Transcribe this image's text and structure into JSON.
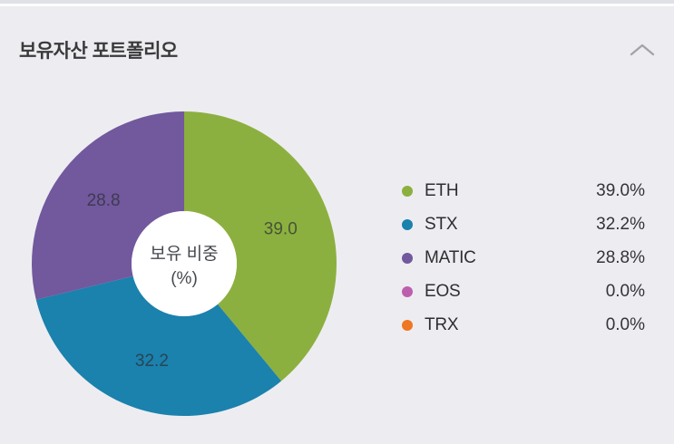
{
  "header": {
    "title": "보유자산 포트폴리오"
  },
  "chart_data": {
    "type": "pie",
    "variant": "donut",
    "title": "보유자산 포트폴리오",
    "center_label_line1": "보유 비중",
    "center_label_line2": "(%)",
    "unit": "%",
    "start_angle_deg": 0,
    "direction": "clockwise",
    "legend_position": "right",
    "series": [
      {
        "name": "ETH",
        "value": 39.0,
        "color": "#8cb03f"
      },
      {
        "name": "STX",
        "value": 32.2,
        "color": "#1b81ad"
      },
      {
        "name": "MATIC",
        "value": 28.8,
        "color": "#72589d"
      },
      {
        "name": "EOS",
        "value": 0.0,
        "color": "#bc60ae"
      },
      {
        "name": "TRX",
        "value": 0.0,
        "color": "#ef7622"
      }
    ],
    "slice_labels": [
      "39.0",
      "32.2",
      "28.8"
    ]
  },
  "legend": {
    "items": [
      {
        "label": "ETH",
        "value_text": "39.0%",
        "color": "#8cb03f"
      },
      {
        "label": "STX",
        "value_text": "32.2%",
        "color": "#1b81ad"
      },
      {
        "label": "MATIC",
        "value_text": "28.8%",
        "color": "#72589d"
      },
      {
        "label": "EOS",
        "value_text": "0.0%",
        "color": "#bc60ae"
      },
      {
        "label": "TRX",
        "value_text": "0.0%",
        "color": "#ef7622"
      }
    ]
  },
  "colors": {
    "background": "#ededf1",
    "card_title": "#3a3a3c",
    "donut_hole": "#ffffff",
    "chevron": "#a3a4ab"
  }
}
